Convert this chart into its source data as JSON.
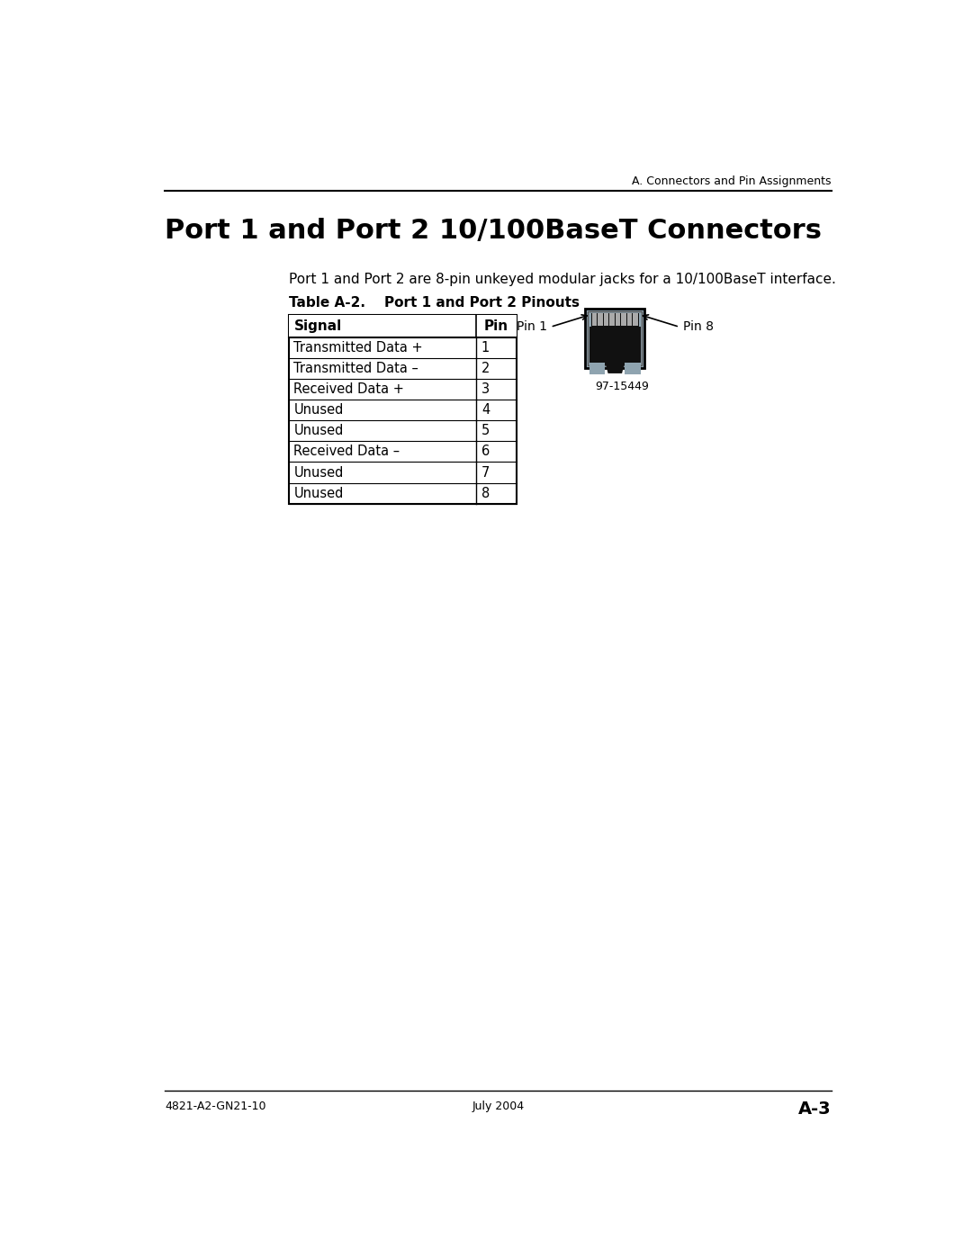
{
  "page_header_right": "A. Connectors and Pin Assignments",
  "section_title": "Port 1 and Port 2 10/100BaseT Connectors",
  "description": "Port 1 and Port 2 are 8-pin unkeyed modular jacks for a 10/100BaseT interface.",
  "table_title": "Table A-2.    Port 1 and Port 2 Pinouts",
  "table_headers": [
    "Signal",
    "Pin"
  ],
  "table_rows": [
    [
      "Transmitted Data +",
      "1"
    ],
    [
      "Transmitted Data –",
      "2"
    ],
    [
      "Received Data +",
      "3"
    ],
    [
      "Unused",
      "4"
    ],
    [
      "Unused",
      "5"
    ],
    [
      "Received Data –",
      "6"
    ],
    [
      "Unused",
      "7"
    ],
    [
      "Unused",
      "8"
    ]
  ],
  "connector_label_left": "Pin 1",
  "connector_label_right": "Pin 8",
  "connector_part_number": "97-15449",
  "footer_left": "4821-A2-GN21-10",
  "footer_center": "July 2004",
  "footer_right": "A-3",
  "bg_color": "#ffffff",
  "table_border_color": "#000000",
  "header_line_color": "#000000",
  "footer_line_color": "#000000",
  "connector_bg": "#8fa4b0",
  "connector_border": "#000000",
  "connector_body": "#111111",
  "connector_pin_color": "#888888"
}
